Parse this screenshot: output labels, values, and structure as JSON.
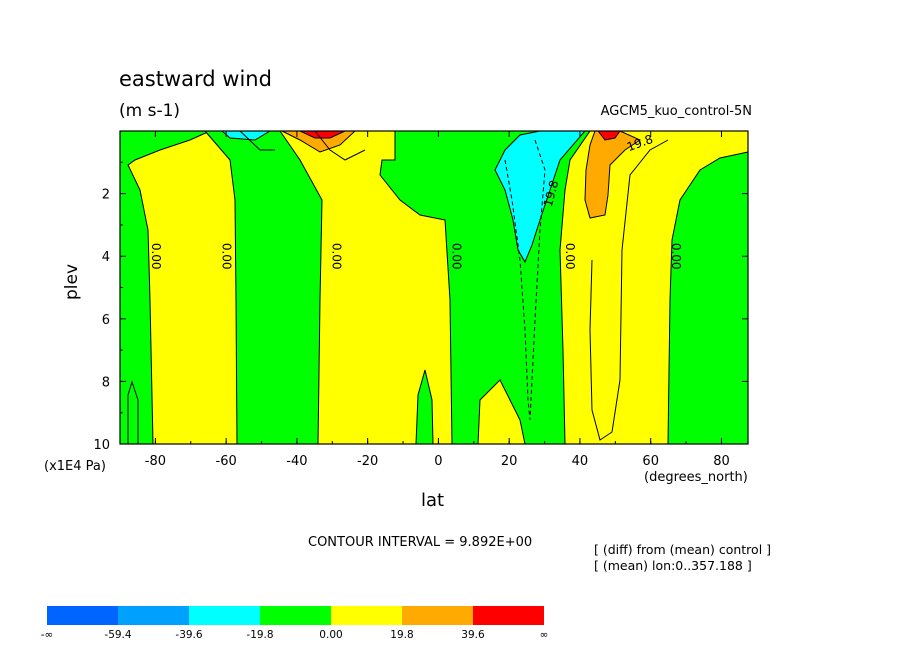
{
  "chart_data": {
    "type": "contour",
    "title": "eastward wind",
    "units": "(m s-1)",
    "subtitle": "AGCM5_kuo_control-5N",
    "xlabel": "lat",
    "xunit": "(degrees_north)",
    "ylabel": "plev",
    "yunit": "(x1E4 Pa)",
    "xlim": [
      -90,
      87.5
    ],
    "ylim": [
      10,
      0
    ],
    "xticks": [
      -80,
      -60,
      -40,
      -20,
      0,
      20,
      40,
      60,
      80
    ],
    "xtick_labels": [
      "-80",
      "-60",
      "-40",
      "-20",
      "0",
      "20",
      "40",
      "60",
      "80"
    ],
    "yticks": [
      2,
      4,
      6,
      8,
      10
    ],
    "ytick_labels": [
      "2",
      "4",
      "6",
      "8",
      "10"
    ],
    "contour_interval_text": "CONTOUR INTERVAL = 9.892E+00",
    "contour_labels": [
      {
        "text": "0.00",
        "lat": -80,
        "plev": 4
      },
      {
        "text": "0.00",
        "lat": -60,
        "plev": 4
      },
      {
        "text": "0.00",
        "lat": -29,
        "plev": 4
      },
      {
        "text": "0.00",
        "lat": 5,
        "plev": 4
      },
      {
        "text": "0.00",
        "lat": 37,
        "plev": 4
      },
      {
        "text": "0.00",
        "lat": 67,
        "plev": 4
      },
      {
        "text": "19.8",
        "lat": 32,
        "plev": 2
      },
      {
        "text": "19.8",
        "lat": 57,
        "plev": 0.4
      }
    ],
    "notes": [
      "[ (diff) from (mean) control ]",
      "[ (mean) lon:0..357.188 ]"
    ],
    "levels": [
      "-∞",
      "-59.4",
      "-39.6",
      "-19.8",
      "0.00",
      "19.8",
      "39.6",
      "∞"
    ],
    "fill_colors": [
      "#0064ff",
      "#00a0ff",
      "#00ffff",
      "#00ff00",
      "#ffff00",
      "#ffaa00",
      "#ff0000"
    ]
  }
}
